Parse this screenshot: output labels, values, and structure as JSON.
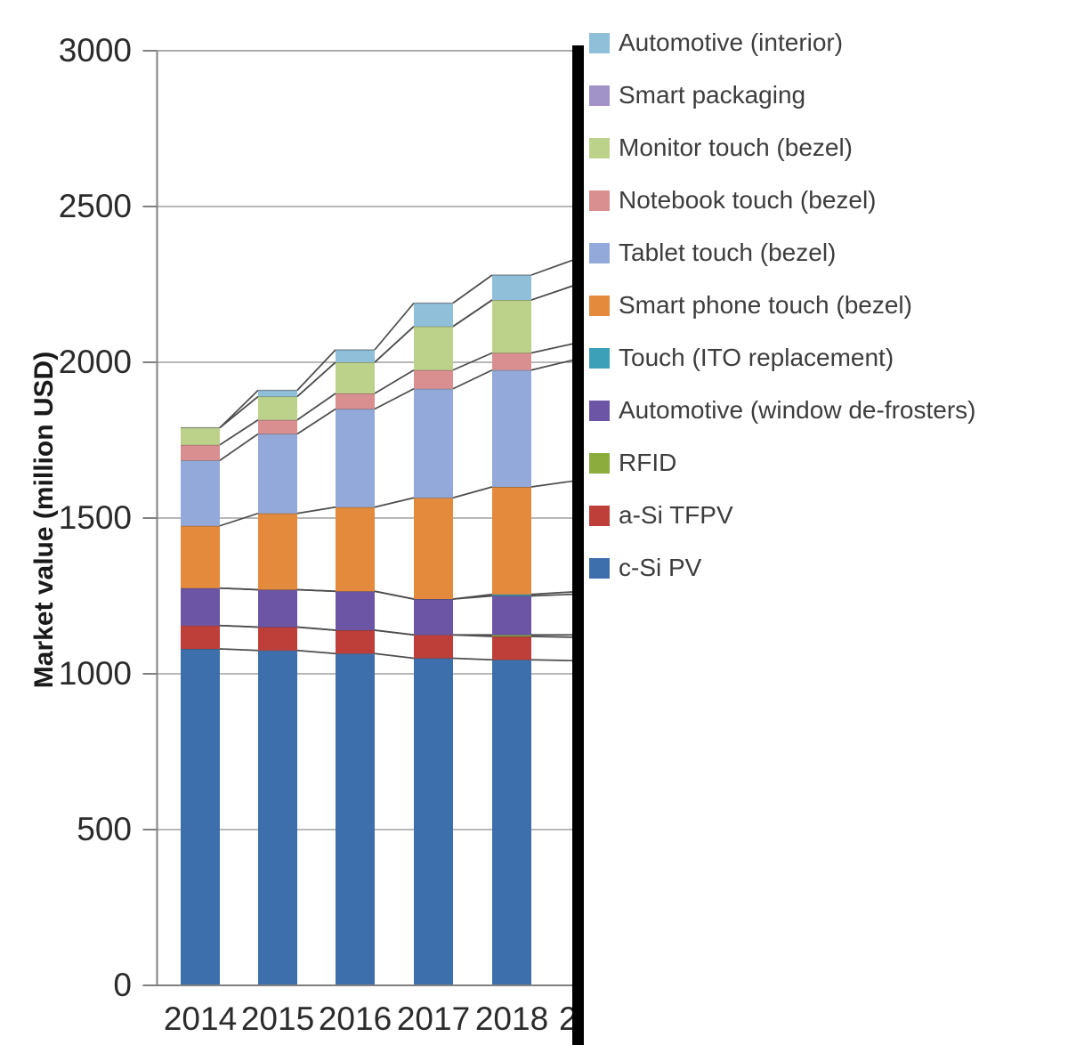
{
  "figure": {
    "y_axis_title": "Market value (million USD)",
    "partial_next_label": "2"
  },
  "chart_data": {
    "type": "bar",
    "stacked": true,
    "title": "",
    "xlabel": "",
    "ylabel": "Market value (million USD)",
    "ylim": [
      0,
      3000
    ],
    "yticks": [
      0,
      500,
      1000,
      1500,
      2000,
      2500,
      3000
    ],
    "grid": true,
    "series_lines": true,
    "legend_position": "right",
    "note": "chart cropped at right edge by a thick black line; next category label partially visible",
    "categories": [
      "2014",
      "2015",
      "2016",
      "2017",
      "2018"
    ],
    "series": [
      {
        "name": "c-Si PV",
        "color": "#3e6fad",
        "values": [
          1080,
          1075,
          1065,
          1050,
          1045
        ]
      },
      {
        "name": "a-Si TFPV",
        "color": "#be3e3a",
        "values": [
          75,
          75,
          75,
          75,
          75
        ]
      },
      {
        "name": "RFID",
        "color": "#8cac3e",
        "values": [
          0,
          0,
          0,
          0,
          5
        ]
      },
      {
        "name": "Automotive (window de-frosters)",
        "color": "#6c55a5",
        "values": [
          120,
          120,
          125,
          115,
          125
        ]
      },
      {
        "name": "Touch (ITO replacement)",
        "color": "#3ba0b8",
        "values": [
          0,
          0,
          0,
          0,
          5
        ]
      },
      {
        "name": "Smart phone touch (bezel)",
        "color": "#e48a3c",
        "values": [
          200,
          245,
          270,
          325,
          345
        ]
      },
      {
        "name": "Tablet touch (bezel)",
        "color": "#93a9d9",
        "values": [
          210,
          255,
          315,
          350,
          375
        ]
      },
      {
        "name": "Notebook touch (bezel)",
        "color": "#d98f90",
        "values": [
          50,
          45,
          50,
          60,
          55
        ]
      },
      {
        "name": "Monitor touch (bezel)",
        "color": "#bcd28a",
        "values": [
          55,
          75,
          100,
          140,
          170
        ]
      },
      {
        "name": "Smart packaging",
        "color": "#a192c8",
        "values": [
          0,
          0,
          0,
          0,
          0
        ]
      },
      {
        "name": "Automotive (interior)",
        "color": "#8fbfd9",
        "values": [
          0,
          20,
          40,
          75,
          80
        ]
      }
    ],
    "legend_entries": [
      "Automotive (interior)",
      "Smart packaging",
      "Monitor touch (bezel)",
      "Notebook touch (bezel)",
      "Tablet touch (bezel)",
      "Smart phone touch (bezel)",
      "Touch (ITO replacement)",
      "Automotive (window de-frosters)",
      "RFID",
      "a-Si TFPV",
      "c-Si PV"
    ]
  }
}
